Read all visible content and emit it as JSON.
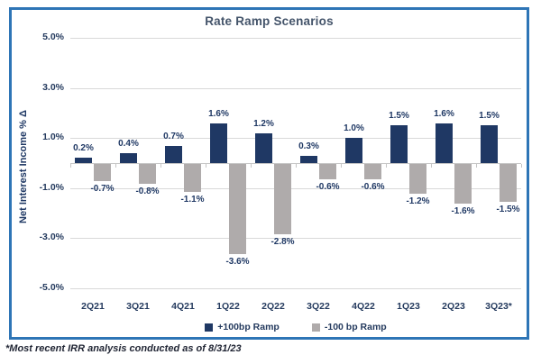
{
  "chart_data": {
    "type": "bar",
    "title": "Rate Ramp Scenarios",
    "ylabel": "Net Interest Income % Δ",
    "xlabel": "",
    "categories": [
      "2Q21",
      "3Q21",
      "4Q21",
      "1Q22",
      "2Q22",
      "3Q22",
      "4Q22",
      "1Q23",
      "2Q23",
      "3Q23*"
    ],
    "series": [
      {
        "name": "+100bp Ramp",
        "color": "#1F3864",
        "values": [
          0.2,
          0.4,
          0.7,
          1.6,
          1.2,
          0.3,
          1.0,
          1.5,
          1.6,
          1.5
        ]
      },
      {
        "name": "-100 bp Ramp",
        "color": "#AFABAB",
        "values": [
          -0.7,
          -0.8,
          -1.1,
          -3.6,
          -2.8,
          -0.6,
          -0.6,
          -1.2,
          -1.6,
          -1.5
        ]
      }
    ],
    "y_ticks": [
      {
        "label": "5.0%",
        "value": 5
      },
      {
        "label": "3.0%",
        "value": 3
      },
      {
        "label": "1.0%",
        "value": 1
      },
      {
        "label": "-1.0%",
        "value": -1
      },
      {
        "label": "-3.0%",
        "value": -3
      },
      {
        "label": "-5.0%",
        "value": -5
      }
    ],
    "ylim": [
      -5,
      5
    ],
    "grid": true,
    "legend_position": "bottom"
  },
  "footnote": "*Most recent IRR analysis conducted as of 8/31/23",
  "colors": {
    "frame_border": "#2E75B6",
    "title": "#44546A",
    "axis_label": "#243A5E",
    "data_label": "#1F3864",
    "gridline": "#D9D9D9",
    "axis_line": "#C6C6C6",
    "background": "#FFFFFF"
  }
}
